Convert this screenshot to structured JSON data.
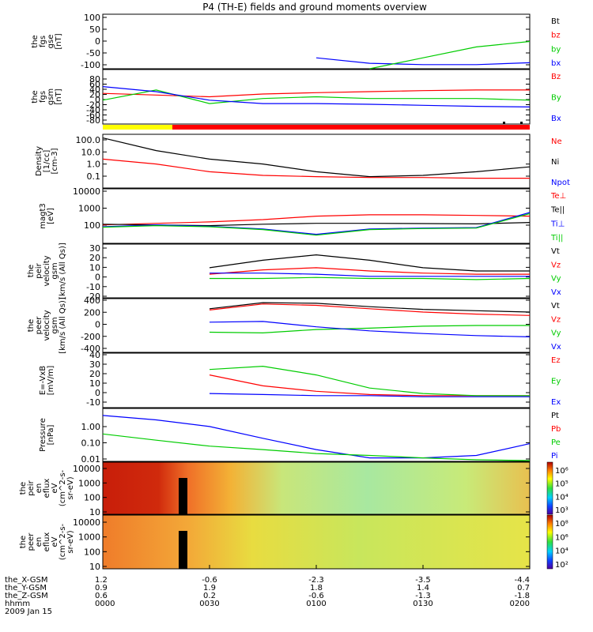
{
  "title": "P4 (TH-E) fields and ground moments overview",
  "panels": [
    {
      "id": "fgs-gse",
      "ylabel": [
        "the",
        "fgs",
        "gse",
        "[nT]"
      ],
      "yticks": [
        "100",
        "50",
        "0",
        "-50",
        "-100"
      ],
      "legend": [
        {
          "text": "Bt",
          "color": "#000000"
        },
        {
          "text": "bz",
          "color": "#ff0000"
        },
        {
          "text": "by",
          "color": "#00cc00"
        },
        {
          "text": "bx",
          "color": "#0000ff"
        }
      ]
    },
    {
      "id": "fgs-gsm",
      "ylabel": [
        "the",
        "fgs",
        "gsm",
        "[nT]"
      ],
      "yticks": [
        "80",
        "60",
        "40",
        "20",
        "0",
        "-20",
        "-40",
        "-60",
        "-80"
      ],
      "legend": [
        {
          "text": "Bz",
          "color": "#ff0000"
        },
        {
          "text": "By",
          "color": "#00cc00"
        },
        {
          "text": "Bx",
          "color": "#0000ff"
        }
      ]
    },
    {
      "id": "density",
      "ylabel": [
        "Density",
        "[1/cc]",
        "[cm-3]"
      ],
      "yticks": [
        "100.0",
        "10.0",
        "1.0",
        "0.1"
      ],
      "legend": [
        {
          "text": "Ne",
          "color": "#ff0000"
        },
        {
          "text": "Ni",
          "color": "#000000"
        },
        {
          "text": "Npot",
          "color": "#0000ff"
        }
      ]
    },
    {
      "id": "temperature",
      "ylabel": [
        "magt3",
        "[eV]"
      ],
      "yticks": [
        "10000",
        "1000",
        "100"
      ],
      "legend": [
        {
          "text": "Te⊥",
          "color": "#ff0000"
        },
        {
          "text": "Te||",
          "color": "#000000"
        },
        {
          "text": "Ti⊥",
          "color": "#0000ff"
        },
        {
          "text": "Ti||",
          "color": "#00cc00"
        }
      ]
    },
    {
      "id": "peir-velocity",
      "ylabel": [
        "the",
        "peir",
        "velocity",
        "gsm",
        "[km/s (All Qs)]"
      ],
      "yticks": [
        "30",
        "20",
        "10",
        "0",
        "-10",
        "-20"
      ],
      "legend": [
        {
          "text": "Vt",
          "color": "#000000"
        },
        {
          "text": "Vz",
          "color": "#ff0000"
        },
        {
          "text": "Vy",
          "color": "#00cc00"
        },
        {
          "text": "Vx",
          "color": "#0000ff"
        }
      ]
    },
    {
      "id": "peer-velocity",
      "ylabel": [
        "the",
        "peer",
        "velocity",
        "gsm",
        "[km/s (All Qs)]"
      ],
      "yticks": [
        "400",
        "200",
        "0",
        "-200",
        "-400"
      ],
      "legend": [
        {
          "text": "Vt",
          "color": "#000000"
        },
        {
          "text": "Vz",
          "color": "#ff0000"
        },
        {
          "text": "Vy",
          "color": "#00cc00"
        },
        {
          "text": "Vx",
          "color": "#0000ff"
        }
      ]
    },
    {
      "id": "efield",
      "ylabel": [
        "E=-VxB",
        "[mV/m]"
      ],
      "yticks": [
        "40",
        "30",
        "20",
        "10",
        "0",
        "-10"
      ],
      "legend": [
        {
          "text": "Ez",
          "color": "#ff0000"
        },
        {
          "text": "Ey",
          "color": "#00cc00"
        },
        {
          "text": "Ex",
          "color": "#0000ff"
        }
      ]
    },
    {
      "id": "pressure",
      "ylabel": [
        "Pressure",
        "[nPa]"
      ],
      "yticks": [
        "1.00",
        "0.10",
        "0.01"
      ],
      "legend": [
        {
          "text": "Pt",
          "color": "#000000"
        },
        {
          "text": "Pb",
          "color": "#ff0000"
        },
        {
          "text": "Pe",
          "color": "#00cc00"
        },
        {
          "text": "Pi",
          "color": "#0000ff"
        }
      ]
    },
    {
      "id": "peir-spec",
      "ylabel": [
        "the",
        "peir",
        "en",
        "eflux",
        "eV",
        "(cm^2-s-",
        "sr-eV)"
      ],
      "yticks": [
        "10000",
        "1000",
        "100",
        "10"
      ],
      "colorbar_labels": [
        "10⁶",
        "10⁵",
        "10⁴",
        "10³"
      ]
    },
    {
      "id": "peer-spec",
      "ylabel": [
        "the",
        "peer",
        "en",
        "eflux",
        "eV",
        "(cm^2-s-",
        "sr-eV)"
      ],
      "yticks": [
        "10000",
        "1000",
        "100",
        "10"
      ],
      "colorbar_labels": [
        "10⁸",
        "10⁶",
        "10⁴",
        "10²"
      ]
    }
  ],
  "xaxis": {
    "rows": [
      {
        "name": "the_X-GSM",
        "values": [
          "1.2",
          "-0.6",
          "-2.3",
          "-3.5",
          "-4.4"
        ]
      },
      {
        "name": "the_Y-GSM",
        "values": [
          "0.9",
          "1.9",
          "1.8",
          "1.4",
          "0.7"
        ]
      },
      {
        "name": "the_Z-GSM",
        "values": [
          "0.6",
          "0.2",
          "-0.6",
          "-1.3",
          "-1.8"
        ]
      },
      {
        "name": "hhmm",
        "values": [
          "0000",
          "0030",
          "0100",
          "0130",
          "0200"
        ]
      }
    ],
    "date": "2009 Jan 15"
  },
  "chart_data": {
    "type": "line",
    "title": "P4 (TH-E) fields and ground moments overview",
    "x": [
      "0000",
      "0015",
      "0030",
      "0045",
      "0100",
      "0115",
      "0130",
      "0145",
      "0200"
    ],
    "xlabel": "hhmm",
    "date": "2009 Jan 15",
    "panels": [
      {
        "ylabel": "the fgs gse [nT]",
        "ylim": [
          -100,
          100
        ],
        "series": [
          {
            "name": "bx",
            "values": [
              null,
              null,
              null,
              null,
              -60,
              -80,
              -85,
              -85,
              -78
            ]
          },
          {
            "name": "by",
            "values": [
              null,
              null,
              null,
              null,
              null,
              -100,
              -60,
              -20,
              0
            ]
          }
        ]
      },
      {
        "ylabel": "the fgs gsm [nT]",
        "ylim": [
          -80,
          80
        ],
        "series": [
          {
            "name": "Bz",
            "values": [
              10,
              5,
              0,
              8,
              12,
              15,
              18,
              20,
              20
            ]
          },
          {
            "name": "By",
            "values": [
              -10,
              20,
              -20,
              -5,
              0,
              -5,
              -5,
              -5,
              -10
            ]
          },
          {
            "name": "Bx",
            "values": [
              30,
              15,
              -10,
              -20,
              -20,
              -22,
              -25,
              -28,
              -30
            ]
          }
        ]
      },
      {
        "ylabel": "Density [1/cc] [cm-3]",
        "scale": "log",
        "ylim": [
          0.05,
          100
        ],
        "series": [
          {
            "name": "Ni",
            "values": [
              60,
              10,
              3,
              1.5,
              0.5,
              0.25,
              0.3,
              0.5,
              1.0
            ]
          },
          {
            "name": "Ne",
            "values": [
              3,
              1.5,
              0.5,
              0.3,
              0.25,
              0.22,
              0.22,
              0.2,
              0.2
            ]
          }
        ]
      },
      {
        "ylabel": "magt3 [eV]",
        "scale": "log",
        "ylim": [
          50,
          10000
        ],
        "series": [
          {
            "name": "Te⊥",
            "values": [
              300,
              350,
              400,
              500,
              700,
              800,
              800,
              750,
              700
            ]
          },
          {
            "name": "Te||",
            "values": [
              320,
              300,
              280,
              320,
              350,
              350,
              340,
              330,
              380
            ]
          },
          {
            "name": "Ti⊥",
            "values": [
              250,
              300,
              260,
              200,
              120,
              200,
              220,
              230,
              1000
            ]
          },
          {
            "name": "Ti||",
            "values": [
              240,
              280,
              250,
              190,
              110,
              190,
              210,
              220,
              900
            ]
          }
        ]
      },
      {
        "ylabel": "the peir velocity gsm [km/s (All Qs)]",
        "ylim": [
          -20,
          30
        ],
        "series": [
          {
            "name": "Vt",
            "values": [
              null,
              null,
              8,
              15,
              20,
              15,
              8,
              5,
              5
            ]
          },
          {
            "name": "Vz",
            "values": [
              null,
              null,
              2,
              6,
              8,
              5,
              3,
              2,
              2
            ]
          },
          {
            "name": "Vy",
            "values": [
              null,
              null,
              -2,
              -2,
              -1,
              -2,
              -2,
              -3,
              -2
            ]
          },
          {
            "name": "Vx",
            "values": [
              null,
              null,
              3,
              3,
              2,
              0,
              0,
              0,
              0
            ]
          }
        ]
      },
      {
        "ylabel": "the peer velocity gsm [km/s (All Qs)]",
        "ylim": [
          -400,
          400
        ],
        "series": [
          {
            "name": "Vt",
            "values": [
              null,
              null,
              250,
              340,
              330,
              280,
              240,
              220,
              200
            ]
          },
          {
            "name": "Vz",
            "values": [
              null,
              null,
              230,
              320,
              300,
              250,
              200,
              170,
              150
            ]
          },
          {
            "name": "Vy",
            "values": [
              null,
              null,
              -100,
              -110,
              -60,
              -40,
              -10,
              0,
              0
            ]
          },
          {
            "name": "Vx",
            "values": [
              null,
              null,
              50,
              60,
              -20,
              -80,
              -120,
              -150,
              -170
            ]
          }
        ]
      },
      {
        "ylabel": "E=-VxB [mV/m]",
        "ylim": [
          -10,
          40
        ],
        "series": [
          {
            "name": "Ez",
            "values": [
              null,
              null,
              20,
              10,
              5,
              2,
              1,
              1,
              1
            ]
          },
          {
            "name": "Ey",
            "values": [
              null,
              null,
              25,
              28,
              20,
              8,
              3,
              1,
              1
            ]
          },
          {
            "name": "Ex",
            "values": [
              null,
              null,
              3,
              2,
              1,
              1,
              0,
              0,
              0
            ]
          }
        ]
      },
      {
        "ylabel": "Pressure [nPa]",
        "scale": "log",
        "ylim": [
          0.01,
          5
        ],
        "series": [
          {
            "name": "Pi",
            "values": [
              2.2,
              1.3,
              0.6,
              0.15,
              0.04,
              0.015,
              0.015,
              0.02,
              0.08
            ]
          },
          {
            "name": "Pe",
            "values": [
              0.25,
              0.12,
              0.06,
              0.04,
              0.025,
              0.02,
              0.015,
              0.012,
              0.011
            ]
          }
        ]
      }
    ],
    "spectrograms": [
      {
        "ylabel": "the peir en eflux",
        "scale": "log",
        "ylim": [
          10,
          20000
        ]
      },
      {
        "ylabel": "the peer en eflux",
        "scale": "log",
        "ylim": [
          10,
          20000
        ]
      }
    ]
  }
}
